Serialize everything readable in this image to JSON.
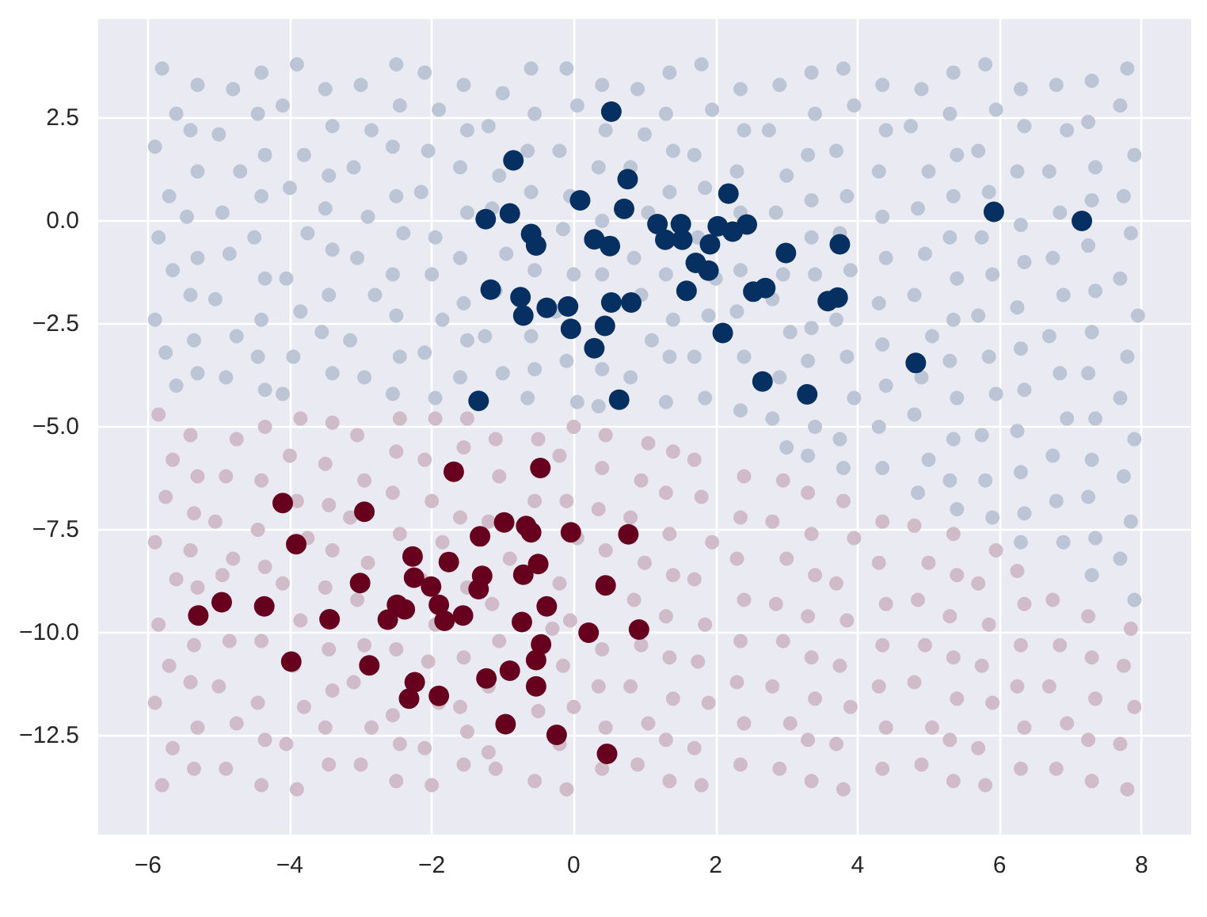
{
  "chart_data": {
    "type": "scatter",
    "marker": "circle",
    "grid": true,
    "xlim": [
      -6.7,
      8.7
    ],
    "xticks": [
      -6,
      -4,
      -2,
      0,
      2,
      4,
      6,
      8
    ],
    "ylim": [
      -14.9,
      4.9
    ],
    "yticks": [
      {
        "value": -12.5,
        "label": "−12.5"
      },
      {
        "value": -10,
        "label": "−10.0"
      },
      {
        "value": -7.5,
        "label": "−7.5"
      },
      {
        "value": -5,
        "label": "−5.0"
      },
      {
        "value": -2.5,
        "label": "−2.5"
      },
      {
        "value": 0,
        "label": "0.0"
      },
      {
        "value": 2.5,
        "label": "2.5"
      }
    ],
    "series": [
      {
        "color": "#bcc5d5",
        "x": [
          -5.8,
          -5.6,
          -5.9,
          -5.7,
          -5.85,
          -5.65,
          -5.9,
          -5.75,
          -5.6,
          -4.8,
          -5.0,
          -4.7,
          -4.95,
          -4.85,
          -5.05,
          -4.75,
          -4.9,
          -3.9,
          -4.1,
          -3.8,
          -4.0,
          -3.75,
          -4.05,
          -3.85,
          -3.95,
          -4.1,
          -3.0,
          -2.85,
          -3.1,
          -2.9,
          -3.05,
          -2.8,
          -3.15,
          -2.95,
          -2.1,
          -1.9,
          -2.05,
          -2.15,
          -1.95,
          -2.0,
          -1.85,
          -2.1,
          -1.95,
          -1.0,
          -1.2,
          -1.05,
          -1.15,
          -0.95,
          -1.1,
          -1.25,
          -1.0,
          -0.1,
          0.05,
          -0.2,
          -0.05,
          -0.15,
          0.0,
          -0.25,
          -0.1,
          0.05,
          0.9,
          1.0,
          0.8,
          1.05,
          0.85,
          0.95,
          1.1,
          0.8,
          1.8,
          1.95,
          1.7,
          1.85,
          1.75,
          2.0,
          1.9,
          1.7,
          1.85,
          2.9,
          2.75,
          3.0,
          2.85,
          2.95,
          2.8,
          3.05,
          2.9,
          2.8,
          3.0,
          3.8,
          3.95,
          3.7,
          3.85,
          3.75,
          3.9,
          3.7,
          3.85,
          3.95,
          3.75,
          3.8,
          4.9,
          4.75,
          5.0,
          4.85,
          4.95,
          4.8,
          5.05,
          4.9,
          4.8,
          5.0,
          4.85,
          5.8,
          5.95,
          5.7,
          5.85,
          5.75,
          5.9,
          5.7,
          5.85,
          5.95,
          5.75,
          5.8,
          5.9,
          6.8,
          6.95,
          6.7,
          6.85,
          6.75,
          6.9,
          6.7,
          6.85,
          6.95,
          6.75,
          6.8,
          6.9,
          7.8,
          7.7,
          7.9,
          7.75,
          7.85,
          7.7,
          7.95,
          7.8,
          7.7,
          7.9,
          7.75,
          7.85,
          7.7,
          7.9,
          -5.3,
          -5.4,
          -5.3,
          -5.45,
          -5.3,
          -5.4,
          -5.35,
          -5.3,
          -4.4,
          -4.45,
          -4.35,
          -4.4,
          -4.5,
          -4.35,
          -4.4,
          -4.45,
          -4.35,
          -3.5,
          -3.4,
          -3.45,
          -3.5,
          -3.4,
          -3.45,
          -3.55,
          -3.4,
          -2.5,
          -2.45,
          -2.55,
          -2.5,
          -2.4,
          -2.55,
          -2.5,
          -2.45,
          -2.55,
          -1.55,
          -1.5,
          -1.6,
          -1.5,
          -1.6,
          -1.55,
          -1.5,
          -1.6,
          -0.6,
          -0.55,
          -0.65,
          -0.6,
          -0.55,
          -0.6,
          -0.55,
          -0.65,
          0.4,
          0.45,
          0.35,
          0.4,
          0.4,
          0.4,
          0.35,
          1.35,
          1.3,
          1.4,
          1.35,
          1.3,
          1.4,
          1.35,
          1.3,
          2.35,
          2.4,
          2.3,
          2.35,
          2.35,
          2.3,
          2.4,
          2.35,
          3.35,
          3.4,
          3.3,
          3.35,
          3.35,
          3.4,
          3.35,
          3.3,
          3.4,
          3.3,
          4.35,
          4.4,
          4.3,
          4.35,
          4.4,
          4.3,
          4.35,
          4.4,
          4.3,
          4.35,
          5.35,
          5.3,
          5.4,
          5.35,
          5.3,
          5.4,
          5.35,
          5.3,
          5.4,
          5.35,
          5.3,
          5.4,
          6.3,
          6.35,
          6.25,
          6.3,
          6.35,
          6.25,
          6.3,
          6.35,
          6.25,
          6.3,
          6.35,
          6.3,
          7.3,
          7.25,
          7.35,
          7.3,
          7.25,
          7.35,
          7.3,
          7.25,
          7.35,
          7.3,
          7.25,
          7.35,
          7.3
        ],
        "values": [
          3.7,
          2.6,
          1.8,
          0.6,
          -0.4,
          -1.2,
          -2.4,
          -3.2,
          -4.0,
          3.2,
          2.1,
          1.2,
          0.2,
          -0.8,
          -1.9,
          -2.8,
          -3.8,
          3.8,
          2.8,
          1.6,
          0.8,
          -0.3,
          -1.4,
          -2.2,
          -3.3,
          -4.2,
          3.3,
          2.2,
          1.3,
          0.1,
          -0.9,
          -1.8,
          -2.9,
          -3.8,
          3.6,
          2.7,
          1.7,
          0.7,
          -0.4,
          -1.3,
          -2.4,
          -3.2,
          -4.3,
          3.1,
          2.3,
          1.1,
          0.3,
          -0.8,
          -1.7,
          -2.8,
          -3.7,
          3.7,
          2.8,
          1.7,
          0.6,
          -0.2,
          -1.3,
          -2.2,
          -3.4,
          -4.4,
          3.2,
          2.1,
          1.3,
          0.2,
          -0.9,
          -1.8,
          -2.9,
          -3.8,
          3.8,
          2.7,
          1.6,
          0.8,
          -0.4,
          -1.4,
          -2.3,
          -3.3,
          -4.3,
          3.3,
          2.2,
          1.1,
          0.2,
          -1.3,
          -1.9,
          -2.7,
          -3.8,
          -4.8,
          -5.5,
          3.7,
          2.8,
          1.7,
          0.6,
          -0.3,
          -1.2,
          -2.4,
          -3.3,
          -4.3,
          -5.3,
          -6.0,
          3.2,
          2.3,
          1.2,
          0.3,
          -0.8,
          -1.8,
          -2.8,
          -3.8,
          -4.7,
          -5.8,
          -6.6,
          3.8,
          2.7,
          1.7,
          0.7,
          -0.4,
          -1.3,
          -2.3,
          -3.3,
          -4.2,
          -5.2,
          -6.3,
          -7.2,
          3.3,
          2.2,
          1.2,
          0.2,
          -0.9,
          -1.8,
          -2.8,
          -3.7,
          -4.8,
          -5.7,
          -6.8,
          -7.8,
          3.7,
          2.8,
          1.6,
          0.6,
          -0.3,
          -1.4,
          -2.3,
          -3.3,
          -4.3,
          -5.3,
          -6.2,
          -7.3,
          -8.2,
          -9.2,
          3.3,
          2.2,
          1.2,
          0.1,
          -0.9,
          -1.8,
          -2.9,
          -3.7,
          3.6,
          2.6,
          1.6,
          0.6,
          -0.4,
          -1.4,
          -2.4,
          -3.3,
          -4.1,
          3.2,
          2.3,
          1.1,
          0.3,
          -0.7,
          -1.8,
          -2.7,
          -3.7,
          3.8,
          2.8,
          1.8,
          0.6,
          -0.3,
          -1.3,
          -2.3,
          -3.3,
          -4.2,
          3.3,
          2.2,
          1.3,
          0.2,
          -0.9,
          -2.0,
          -2.9,
          -3.8,
          3.7,
          2.6,
          1.7,
          0.7,
          -1.2,
          -2.8,
          -3.6,
          -4.3,
          3.3,
          2.2,
          1.3,
          0.0,
          -1.3,
          -3.6,
          -4.5,
          3.6,
          2.6,
          1.7,
          0.7,
          -1.3,
          -2.4,
          -3.3,
          -4.4,
          3.2,
          2.2,
          1.2,
          0.2,
          -1.2,
          -2.2,
          -3.3,
          -4.6,
          3.6,
          2.6,
          1.6,
          0.5,
          -0.4,
          -1.3,
          -2.6,
          -3.4,
          -5.0,
          -5.7,
          3.3,
          2.2,
          1.2,
          0.1,
          -0.9,
          -2.0,
          -3.0,
          -4.0,
          -5.0,
          -6.0,
          3.6,
          2.6,
          1.6,
          0.6,
          -0.4,
          -1.4,
          -2.4,
          -3.4,
          -4.3,
          -5.3,
          -6.3,
          -7.0,
          3.2,
          2.3,
          1.2,
          -0.1,
          -1.0,
          -2.1,
          -3.1,
          -4.1,
          -5.1,
          -6.1,
          -7.1,
          -7.8,
          3.4,
          2.4,
          1.3,
          0.5,
          -0.6,
          -1.7,
          -2.7,
          -3.7,
          -4.8,
          -5.8,
          -6.7,
          -7.7,
          -8.6
        ]
      },
      {
        "color": "#d0bbc8",
        "x": [
          -5.8,
          -5.65,
          -5.9,
          -5.7,
          -5.85,
          -5.6,
          -5.9,
          -5.75,
          -5.65,
          -5.85,
          -4.9,
          -4.75,
          -5.0,
          -4.85,
          -4.95,
          -4.8,
          -5.05,
          -4.9,
          -4.75,
          -3.9,
          -4.05,
          -3.8,
          -3.95,
          -3.85,
          -4.1,
          -3.75,
          -3.9,
          -4.0,
          -3.85,
          -3.0,
          -2.85,
          -3.1,
          -2.95,
          -3.05,
          -2.9,
          -3.15,
          -2.95,
          -3.05,
          -2.0,
          -2.1,
          -1.9,
          -2.05,
          -1.95,
          -2.15,
          -1.85,
          -2.0,
          -2.1,
          -1.95,
          -1.1,
          -1.2,
          -1.2,
          -1.05,
          -1.15,
          -0.9,
          -1.2,
          -1.05,
          -1.1,
          -0.1,
          -0.2,
          0.0,
          -0.15,
          -0.05,
          -0.2,
          0.05,
          -0.1,
          -0.2,
          0.0,
          0.9,
          1.05,
          0.8,
          0.95,
          0.85,
          1.0,
          0.8,
          0.95,
          1.05,
          1.8,
          1.7,
          1.9,
          1.75,
          1.85,
          1.7,
          1.95,
          1.8,
          1.7,
          2.9,
          3.05,
          2.8,
          2.95,
          2.85,
          3.0,
          2.8,
          2.95,
          3.8,
          3.7,
          3.9,
          3.75,
          3.85,
          3.7,
          3.95,
          3.8,
          4.9,
          5.05,
          4.8,
          4.95,
          4.85,
          5.0,
          4.8,
          5.8,
          5.7,
          5.9,
          5.75,
          5.85,
          5.7,
          5.95,
          6.8,
          6.95,
          6.7,
          6.85,
          6.75,
          7.8,
          7.7,
          7.9,
          7.75,
          7.85,
          -5.35,
          -5.3,
          -5.4,
          -5.35,
          -5.3,
          -5.4,
          -5.35,
          -5.3,
          -5.4,
          -4.4,
          -4.35,
          -4.45,
          -4.4,
          -4.35,
          -4.45,
          -4.4,
          -4.35,
          -3.45,
          -3.5,
          -3.4,
          -3.45,
          -3.5,
          -3.4,
          -3.45,
          -3.5,
          -3.4,
          -2.5,
          -2.45,
          -2.55,
          -2.5,
          -2.45,
          -2.55,
          -2.5,
          -2.45,
          -1.55,
          -1.5,
          -1.6,
          -1.55,
          -1.5,
          -1.6,
          -1.55,
          -1.5,
          -0.55,
          -0.5,
          -0.3,
          -0.55,
          -0.5,
          0.4,
          0.45,
          0.35,
          0.4,
          0.45,
          0.35,
          0.4,
          0.45,
          1.35,
          1.3,
          1.4,
          1.35,
          1.3,
          1.4,
          1.35,
          1.3,
          1.4,
          2.35,
          2.4,
          2.3,
          2.35,
          2.4,
          2.3,
          2.35,
          2.4,
          3.35,
          3.3,
          3.4,
          3.35,
          3.3,
          3.4,
          3.35,
          3.3,
          4.35,
          4.4,
          4.3,
          4.35,
          4.4,
          4.3,
          4.35,
          5.35,
          5.3,
          5.4,
          5.35,
          5.3,
          5.4,
          5.35,
          6.3,
          6.35,
          6.25,
          6.3,
          6.35,
          6.25,
          7.3,
          7.25,
          7.35,
          7.3,
          7.25
        ],
        "values": [
          -13.7,
          -12.8,
          -11.7,
          -10.8,
          -9.8,
          -8.7,
          -7.8,
          -6.7,
          -5.8,
          -4.7,
          -13.3,
          -12.2,
          -11.3,
          -10.2,
          -8.6,
          -8.2,
          -7.3,
          -6.2,
          -5.3,
          -13.8,
          -12.7,
          -11.8,
          -10.8,
          -9.7,
          -8.8,
          -7.7,
          -6.8,
          -5.7,
          -4.8,
          -13.2,
          -12.3,
          -11.2,
          -10.3,
          -9.2,
          -8.3,
          -7.2,
          -6.3,
          -5.2,
          -13.7,
          -12.8,
          -11.7,
          -10.7,
          -9.8,
          -8.7,
          -7.8,
          -6.8,
          -5.8,
          -4.8,
          -13.3,
          -12.9,
          -11.3,
          -10.2,
          -9.3,
          -8.2,
          -7.3,
          -6.2,
          -5.3,
          -13.8,
          -12.7,
          -11.8,
          -10.8,
          -9.7,
          -8.8,
          -7.7,
          -6.8,
          -5.7,
          -5.0,
          -13.2,
          -12.2,
          -11.3,
          -10.3,
          -9.2,
          -8.3,
          -7.2,
          -6.3,
          -5.4,
          -13.7,
          -12.8,
          -11.7,
          -10.7,
          -9.8,
          -8.7,
          -7.8,
          -6.7,
          -5.8,
          -13.3,
          -12.2,
          -11.3,
          -10.2,
          -9.3,
          -8.2,
          -7.3,
          -6.3,
          -13.8,
          -12.7,
          -11.8,
          -10.8,
          -9.7,
          -8.8,
          -7.7,
          -6.8,
          -13.2,
          -12.3,
          -11.2,
          -10.3,
          -9.2,
          -8.3,
          -7.4,
          -13.7,
          -12.8,
          -11.7,
          -10.8,
          -9.8,
          -8.8,
          -8.0,
          -13.3,
          -12.2,
          -11.3,
          -10.3,
          -9.2,
          -13.8,
          -12.7,
          -11.8,
          -10.8,
          -9.9,
          -13.3,
          -12.3,
          -11.2,
          -10.3,
          -8.9,
          -8.0,
          -7.1,
          -6.2,
          -5.2,
          -13.7,
          -12.6,
          -11.7,
          -10.2,
          -8.4,
          -7.5,
          -6.3,
          -5.0,
          -13.2,
          -12.3,
          -11.4,
          -10.4,
          -8.9,
          -8.0,
          -6.9,
          -5.9,
          -4.9,
          -13.6,
          -12.7,
          -12.0,
          -10.4,
          -7.6,
          -6.6,
          -5.6,
          -4.8,
          -13.2,
          -12.4,
          -11.8,
          -10.6,
          -8.9,
          -7.2,
          -5.5,
          -4.8,
          -13.6,
          -11.9,
          -9.9,
          -6.8,
          -5.3,
          -13.3,
          -12.3,
          -11.3,
          -10.4,
          -8.0,
          -7.0,
          -6.0,
          -5.2,
          -13.6,
          -12.6,
          -11.6,
          -10.6,
          -9.6,
          -8.6,
          -7.6,
          -6.6,
          -5.6,
          -13.2,
          -12.2,
          -11.2,
          -10.2,
          -9.2,
          -8.2,
          -7.2,
          -6.2,
          -13.6,
          -12.6,
          -11.6,
          -10.6,
          -9.6,
          -8.6,
          -7.6,
          -6.6,
          -13.3,
          -12.3,
          -11.3,
          -10.3,
          -9.3,
          -8.3,
          -7.3,
          -13.6,
          -12.6,
          -11.6,
          -10.6,
          -9.6,
          -8.6,
          -7.6,
          -13.3,
          -12.3,
          -11.3,
          -10.3,
          -9.3,
          -8.5,
          -13.6,
          -12.6,
          -11.6,
          -10.6,
          -9.6
        ]
      },
      {
        "color": "#053061",
        "x": [
          0.53,
          -0.85,
          0.76,
          0.09,
          0.71,
          2.18,
          -1.24,
          -0.9,
          -0.6,
          -0.53,
          0.29,
          0.51,
          1.18,
          1.51,
          1.29,
          1.53,
          2.03,
          2.24,
          2.44,
          1.92,
          1.72,
          1.9,
          2.99,
          -1.17,
          -0.75,
          -0.71,
          -0.38,
          -0.08,
          -0.04,
          0.29,
          0.44,
          0.53,
          0.81,
          1.59,
          2.53,
          2.7,
          2.1,
          3.58,
          3.72,
          2.66,
          3.29,
          -1.34,
          0.64,
          5.92,
          7.16,
          3.75,
          4.82
        ],
        "values": [
          2.65,
          1.47,
          1.01,
          0.5,
          0.29,
          0.66,
          0.04,
          0.18,
          -0.32,
          -0.6,
          -0.45,
          -0.61,
          -0.08,
          -0.08,
          -0.46,
          -0.46,
          -0.13,
          -0.26,
          -0.09,
          -0.57,
          -1.02,
          -1.21,
          -0.78,
          -1.67,
          -1.85,
          -2.3,
          -2.11,
          -2.08,
          -2.62,
          -3.09,
          -2.55,
          -1.98,
          -1.98,
          -1.7,
          -1.72,
          -1.63,
          -2.72,
          -1.95,
          -1.86,
          -3.9,
          -4.21,
          -4.37,
          -4.34,
          0.22,
          0.0,
          -0.57,
          -3.45
        ]
      },
      {
        "color": "#67001f",
        "x": [
          -1.69,
          -4.1,
          -2.95,
          -3.91,
          -2.27,
          -1.76,
          -3.01,
          -2.25,
          -2.01,
          -2.49,
          -2.38,
          -2.62,
          -1.9,
          -1.82,
          -1.56,
          -4.36,
          -4.96,
          -5.29,
          -3.44,
          -3.98,
          -2.88,
          -2.24,
          -2.32,
          -1.9,
          -0.47,
          -0.98,
          -0.67,
          -0.6,
          -0.04,
          0.77,
          -1.32,
          -1.29,
          -1.34,
          -0.71,
          -0.5,
          0.45,
          -0.38,
          -0.73,
          0.21,
          0.92,
          -0.46,
          -0.53,
          -0.53,
          -0.9,
          -1.23,
          -0.96,
          -0.24,
          0.47
        ],
        "values": [
          -6.09,
          -6.85,
          -7.06,
          -7.85,
          -8.15,
          -8.28,
          -8.79,
          -8.66,
          -8.88,
          -9.32,
          -9.43,
          -9.68,
          -9.32,
          -9.71,
          -9.58,
          -9.36,
          -9.26,
          -9.58,
          -9.67,
          -10.7,
          -10.79,
          -11.2,
          -11.6,
          -11.53,
          -6.0,
          -7.32,
          -7.41,
          -7.56,
          -7.56,
          -7.61,
          -7.66,
          -8.62,
          -8.94,
          -8.59,
          -8.33,
          -8.85,
          -9.36,
          -9.74,
          -10.0,
          -9.92,
          -10.28,
          -10.66,
          -11.3,
          -10.92,
          -11.11,
          -12.22,
          -12.48,
          -12.94
        ]
      }
    ]
  }
}
